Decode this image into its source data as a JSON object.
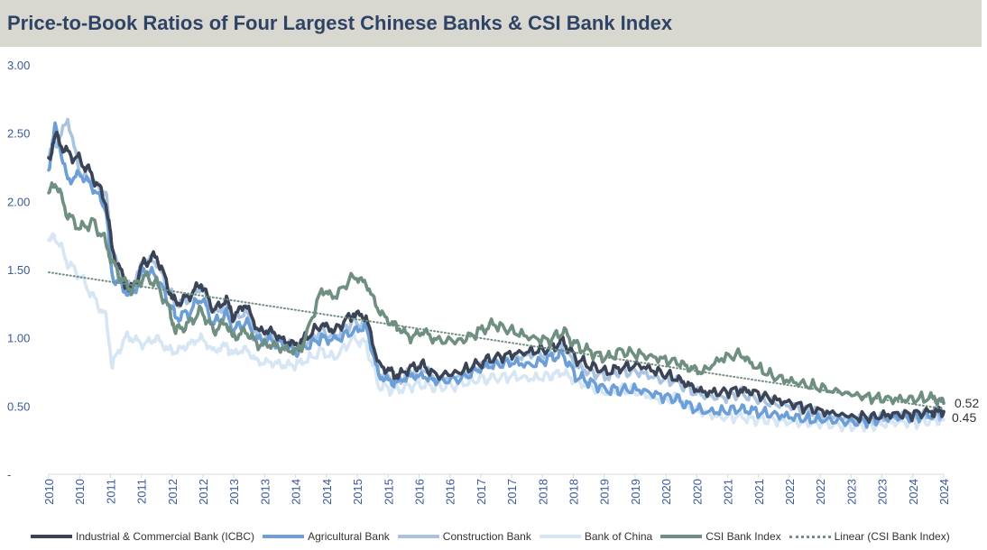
{
  "title": "Price-to-Book Ratios of Four Largest Chinese Banks & CSI Bank Index",
  "chart_data": {
    "type": "line",
    "title": "Price-to-Book Ratios of Four Largest Chinese Banks & CSI Bank Index",
    "xlabel": "",
    "ylabel": "",
    "ylim": [
      0,
      3
    ],
    "yticks": [
      "-",
      "0.50",
      "1.00",
      "1.50",
      "2.00",
      "2.50",
      "3.00"
    ],
    "xlim": [
      2010.0,
      2024.1
    ],
    "x_tick_labels": [
      "2010",
      "2010",
      "2011",
      "2011",
      "2012",
      "2012",
      "2013",
      "2013",
      "2014",
      "2014",
      "2015",
      "2015",
      "2016",
      "2016",
      "2017",
      "2017",
      "2018",
      "2018",
      "2019",
      "2019",
      "2020",
      "2020",
      "2021",
      "2021",
      "2022",
      "2022",
      "2023",
      "2023",
      "2024",
      "2024"
    ],
    "grid": false,
    "legend_position": "bottom",
    "end_labels": [
      "0.52",
      "0.45"
    ],
    "series": [
      {
        "name": "Industrial & Commercial Bank (ICBC)",
        "color": "#3b4357",
        "x": [
          2010.0,
          2010.1,
          2010.3,
          2010.5,
          2010.7,
          2010.9,
          2011.0,
          2011.2,
          2011.3,
          2011.5,
          2011.7,
          2011.9,
          2012.0,
          2012.2,
          2012.4,
          2012.6,
          2012.8,
          2012.9,
          2013.1,
          2013.3,
          2013.5,
          2013.7,
          2013.9,
          2014.0,
          2014.3,
          2014.5,
          2014.8,
          2015.0,
          2015.2,
          2015.4,
          2015.5,
          2015.7,
          2015.9,
          2016.1,
          2016.5,
          2016.8,
          2017.0,
          2017.3,
          2017.6,
          2017.9,
          2018.1,
          2018.3,
          2018.5,
          2018.8,
          2019.0,
          2019.3,
          2019.6,
          2019.9,
          2020.1,
          2020.3,
          2020.6,
          2020.9,
          2021.1,
          2021.4,
          2021.7,
          2022.0,
          2022.3,
          2022.7,
          2023.0,
          2023.3,
          2023.6,
          2023.9,
          2024.0,
          2024.1
        ],
        "values": [
          2.3,
          2.48,
          2.35,
          2.3,
          2.18,
          2.0,
          1.65,
          1.4,
          1.35,
          1.55,
          1.6,
          1.35,
          1.25,
          1.3,
          1.4,
          1.2,
          1.28,
          1.15,
          1.25,
          1.05,
          1.05,
          0.98,
          0.95,
          0.98,
          1.1,
          1.05,
          1.18,
          1.15,
          0.8,
          0.75,
          0.72,
          0.78,
          0.8,
          0.72,
          0.75,
          0.82,
          0.85,
          0.88,
          0.9,
          0.92,
          0.98,
          0.85,
          0.8,
          0.75,
          0.78,
          0.8,
          0.75,
          0.7,
          0.65,
          0.6,
          0.6,
          0.62,
          0.6,
          0.55,
          0.52,
          0.48,
          0.45,
          0.42,
          0.42,
          0.44,
          0.44,
          0.46,
          0.46,
          0.46
        ]
      },
      {
        "name": "Agricultural Bank",
        "color": "#6c9ed8",
        "x": [
          2010.0,
          2010.1,
          2010.3,
          2010.5,
          2010.7,
          2010.9,
          2011.0,
          2011.2,
          2011.3,
          2011.5,
          2011.7,
          2011.9,
          2012.0,
          2012.2,
          2012.4,
          2012.6,
          2012.8,
          2012.9,
          2013.1,
          2013.3,
          2013.5,
          2013.7,
          2013.9,
          2014.0,
          2014.3,
          2014.5,
          2014.8,
          2015.0,
          2015.2,
          2015.4,
          2015.5,
          2015.7,
          2015.9,
          2016.1,
          2016.5,
          2016.8,
          2017.0,
          2017.3,
          2017.6,
          2017.9,
          2018.1,
          2018.3,
          2018.5,
          2018.8,
          2019.0,
          2019.3,
          2019.6,
          2019.9,
          2020.1,
          2020.3,
          2020.6,
          2020.9,
          2021.1,
          2021.4,
          2021.7,
          2022.0,
          2022.3,
          2022.7,
          2023.0,
          2023.3,
          2023.6,
          2023.9,
          2024.0,
          2024.1
        ],
        "values": [
          2.25,
          2.55,
          2.15,
          2.2,
          2.1,
          1.95,
          1.45,
          1.35,
          1.3,
          1.5,
          1.45,
          1.25,
          1.15,
          1.18,
          1.3,
          1.1,
          1.18,
          1.05,
          1.12,
          0.98,
          0.98,
          0.95,
          0.9,
          0.92,
          1.0,
          0.98,
          1.05,
          1.08,
          0.72,
          0.68,
          0.68,
          0.72,
          0.72,
          0.68,
          0.7,
          0.78,
          0.8,
          0.82,
          0.8,
          0.85,
          0.88,
          0.72,
          0.68,
          0.62,
          0.62,
          0.62,
          0.58,
          0.55,
          0.5,
          0.46,
          0.46,
          0.48,
          0.46,
          0.44,
          0.42,
          0.4,
          0.4,
          0.38,
          0.4,
          0.42,
          0.42,
          0.44,
          0.46,
          0.46
        ]
      },
      {
        "name": "Construction Bank",
        "color": "#a8c4e0",
        "x": [
          2010.0,
          2010.1,
          2010.3,
          2010.5,
          2010.7,
          2010.9,
          2011.0,
          2011.2,
          2011.3,
          2011.5,
          2011.7,
          2011.9,
          2012.0,
          2012.2,
          2012.4,
          2012.6,
          2012.8,
          2012.9,
          2013.1,
          2013.3,
          2013.5,
          2013.7,
          2013.9,
          2014.0,
          2014.3,
          2014.5,
          2014.8,
          2015.0,
          2015.2,
          2015.4,
          2015.5,
          2015.7,
          2015.9,
          2016.1,
          2016.5,
          2016.8,
          2017.0,
          2017.3,
          2017.6,
          2017.9,
          2018.1,
          2018.3,
          2018.5,
          2018.8,
          2019.0,
          2019.3,
          2019.6,
          2019.9,
          2020.1,
          2020.3,
          2020.6,
          2020.9,
          2021.1,
          2021.4,
          2021.7,
          2022.0,
          2022.3,
          2022.7,
          2023.0,
          2023.3,
          2023.6,
          2023.9,
          2024.0,
          2024.1
        ],
        "values": [
          2.35,
          2.4,
          2.6,
          2.2,
          2.15,
          2.05,
          1.65,
          1.4,
          1.35,
          1.58,
          1.55,
          1.35,
          1.25,
          1.28,
          1.38,
          1.18,
          1.25,
          1.12,
          1.2,
          1.0,
          1.02,
          0.95,
          0.93,
          0.95,
          1.05,
          1.0,
          1.12,
          1.1,
          0.75,
          0.7,
          0.68,
          0.75,
          0.78,
          0.7,
          0.72,
          0.8,
          0.82,
          0.85,
          0.88,
          0.88,
          0.95,
          0.8,
          0.75,
          0.72,
          0.75,
          0.75,
          0.7,
          0.68,
          0.62,
          0.58,
          0.56,
          0.6,
          0.56,
          0.52,
          0.5,
          0.46,
          0.43,
          0.4,
          0.4,
          0.42,
          0.42,
          0.43,
          0.44,
          0.45
        ]
      },
      {
        "name": "Bank of China",
        "color": "#d7e6f4",
        "x": [
          2010.0,
          2010.1,
          2010.3,
          2010.5,
          2010.7,
          2010.9,
          2011.0,
          2011.2,
          2011.3,
          2011.5,
          2011.7,
          2011.9,
          2012.0,
          2012.2,
          2012.4,
          2012.6,
          2012.8,
          2012.9,
          2013.1,
          2013.3,
          2013.5,
          2013.7,
          2013.9,
          2014.0,
          2014.3,
          2014.5,
          2014.8,
          2015.0,
          2015.2,
          2015.4,
          2015.5,
          2015.7,
          2015.9,
          2016.1,
          2016.5,
          2016.8,
          2017.0,
          2017.3,
          2017.6,
          2017.9,
          2018.1,
          2018.3,
          2018.5,
          2018.8,
          2019.0,
          2019.3,
          2019.6,
          2019.9,
          2020.1,
          2020.3,
          2020.6,
          2020.9,
          2021.1,
          2021.4,
          2021.7,
          2022.0,
          2022.3,
          2022.7,
          2023.0,
          2023.3,
          2023.6,
          2023.9,
          2024.0,
          2024.1
        ],
        "values": [
          1.7,
          1.75,
          1.55,
          1.45,
          1.3,
          1.15,
          0.8,
          1.0,
          1.0,
          0.95,
          1.0,
          0.9,
          0.9,
          0.95,
          1.0,
          0.9,
          0.95,
          0.88,
          0.92,
          0.82,
          0.82,
          0.8,
          0.8,
          0.82,
          0.9,
          0.85,
          1.0,
          0.95,
          0.65,
          0.62,
          0.62,
          0.65,
          0.66,
          0.64,
          0.66,
          0.7,
          0.7,
          0.72,
          0.7,
          0.72,
          0.75,
          0.68,
          0.65,
          0.6,
          0.62,
          0.6,
          0.55,
          0.55,
          0.5,
          0.45,
          0.42,
          0.42,
          0.4,
          0.4,
          0.38,
          0.38,
          0.37,
          0.36,
          0.36,
          0.38,
          0.38,
          0.39,
          0.4,
          0.4
        ]
      },
      {
        "name": "CSI Bank Index",
        "color": "#6f8f80",
        "x": [
          2010.0,
          2010.1,
          2010.3,
          2010.5,
          2010.7,
          2010.9,
          2011.0,
          2011.2,
          2011.3,
          2011.5,
          2011.7,
          2011.9,
          2012.0,
          2012.2,
          2012.4,
          2012.6,
          2012.8,
          2012.9,
          2013.1,
          2013.3,
          2013.5,
          2013.7,
          2013.9,
          2014.0,
          2014.3,
          2014.5,
          2014.8,
          2015.0,
          2015.2,
          2015.4,
          2015.5,
          2015.7,
          2015.9,
          2016.1,
          2016.5,
          2016.8,
          2017.0,
          2017.3,
          2017.6,
          2017.9,
          2018.1,
          2018.3,
          2018.5,
          2018.8,
          2019.0,
          2019.3,
          2019.6,
          2019.9,
          2020.1,
          2020.3,
          2020.6,
          2020.9,
          2021.1,
          2021.4,
          2021.7,
          2022.0,
          2022.3,
          2022.7,
          2023.0,
          2023.3,
          2023.6,
          2023.9,
          2024.0,
          2024.1
        ],
        "values": [
          2.05,
          2.15,
          1.9,
          1.8,
          1.85,
          1.7,
          1.55,
          1.4,
          1.35,
          1.45,
          1.4,
          1.2,
          1.05,
          1.1,
          1.2,
          1.05,
          1.12,
          1.0,
          1.05,
          0.95,
          0.95,
          0.92,
          0.9,
          0.95,
          1.35,
          1.3,
          1.45,
          1.4,
          1.2,
          1.1,
          1.08,
          1.0,
          1.05,
          0.98,
          0.98,
          1.05,
          1.1,
          1.05,
          1.0,
          0.98,
          1.05,
          0.95,
          0.9,
          0.85,
          0.9,
          0.88,
          0.85,
          0.82,
          0.78,
          0.75,
          0.85,
          0.88,
          0.8,
          0.72,
          0.68,
          0.65,
          0.62,
          0.58,
          0.56,
          0.55,
          0.55,
          0.56,
          0.55,
          0.52
        ]
      }
    ],
    "trendline": {
      "name": "Linear (CSI Bank Index)",
      "color": "#6f8f80",
      "x": [
        2010.0,
        2024.1
      ],
      "values": [
        1.48,
        0.48
      ]
    }
  }
}
